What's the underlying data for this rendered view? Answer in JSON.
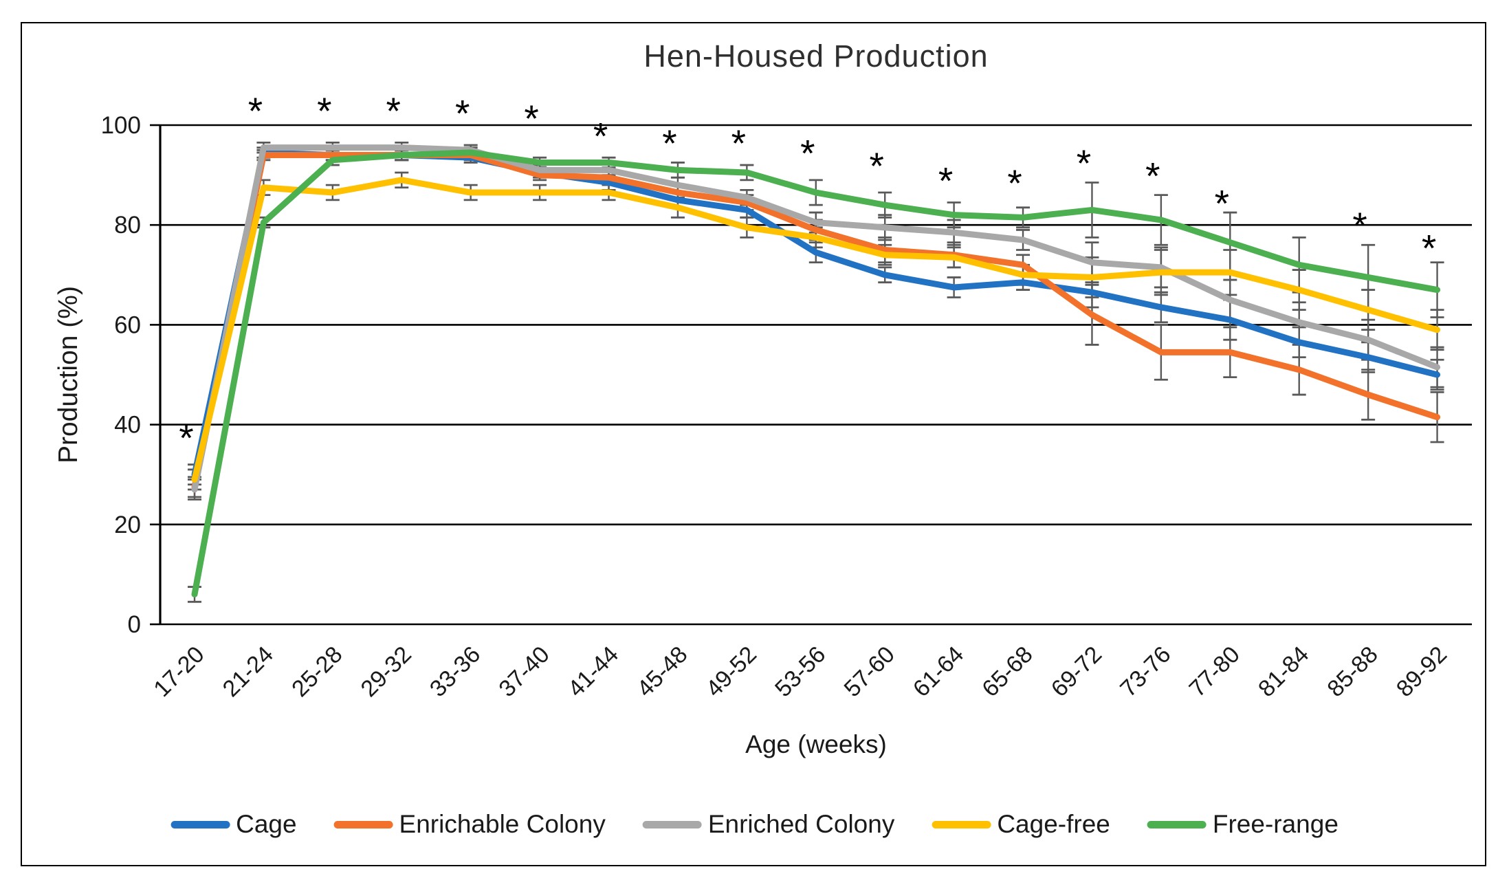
{
  "figure": {
    "title": "Hen-Housed Production",
    "x_axis_title": "Age (weeks)",
    "y_axis_title": "Production (%)"
  },
  "chart_data": {
    "type": "line",
    "title": "Hen-Housed Production",
    "xlabel": "Age (weeks)",
    "ylabel": "Production (%)",
    "ylim": [
      0,
      100
    ],
    "y_ticks": [
      0,
      20,
      40,
      60,
      80,
      100
    ],
    "grid": "horizontal-black",
    "legend_position": "bottom",
    "error_bar_color": "#595959",
    "axis_color": "#000000",
    "categories": [
      "17-20",
      "21-24",
      "25-28",
      "29-32",
      "33-36",
      "37-40",
      "41-44",
      "45-48",
      "49-52",
      "53-56",
      "57-60",
      "61-64",
      "65-68",
      "69-72",
      "73-76",
      "77-80",
      "81-84",
      "85-88",
      "89-92"
    ],
    "series": [
      {
        "name": "Cage",
        "color": "#2272C4",
        "values": [
          30,
          94.5,
          94,
          94,
          93.5,
          90.5,
          88.5,
          85,
          83,
          74.5,
          70,
          67.5,
          68.5,
          66.5,
          63.5,
          61,
          56.5,
          53.5,
          50
        ],
        "errors": [
          2,
          1,
          1,
          1,
          1,
          1,
          1.5,
          1.5,
          1.5,
          2,
          1.5,
          2,
          1.5,
          3,
          3,
          4,
          3,
          3,
          3
        ]
      },
      {
        "name": "Enrichable Colony",
        "color": "#F2712B",
        "values": [
          27.5,
          94,
          94,
          94,
          94,
          90,
          89.5,
          86.5,
          84.5,
          79,
          75,
          74,
          72,
          62,
          54.5,
          54.5,
          51,
          46,
          41.5
        ],
        "errors": [
          2,
          1,
          1,
          1,
          1,
          1,
          1.5,
          1.5,
          1.5,
          2,
          2.5,
          2.5,
          2,
          6,
          5.5,
          5,
          5,
          5,
          5
        ]
      },
      {
        "name": "Enriched Colony",
        "color": "#A8A8A8",
        "values": [
          27,
          95.5,
          95.5,
          95.5,
          95,
          91,
          91,
          88,
          85.5,
          80.5,
          79.5,
          78.5,
          77,
          72.5,
          71.5,
          65,
          60.5,
          57,
          51.5
        ],
        "errors": [
          2,
          1,
          1,
          1,
          1,
          1,
          1.5,
          1.5,
          1.5,
          2,
          2.5,
          2.5,
          2,
          4,
          4,
          4,
          4,
          4,
          4
        ]
      },
      {
        "name": "Cage-free",
        "color": "#FFC000",
        "values": [
          29,
          87.5,
          86.5,
          89,
          86.5,
          86.5,
          86.5,
          83.5,
          79.5,
          77.5,
          74,
          73.5,
          70,
          69.5,
          70.5,
          70.5,
          67,
          63,
          59
        ],
        "errors": [
          2,
          1.5,
          1.5,
          1.5,
          1.5,
          1.5,
          1.5,
          2,
          2,
          2,
          2,
          2,
          2,
          4,
          4.5,
          4.5,
          4,
          4,
          4
        ]
      },
      {
        "name": "Free-range",
        "color": "#4CAF50",
        "values": [
          6,
          80.5,
          93,
          94,
          94.5,
          92.5,
          92.5,
          91,
          90.5,
          86.5,
          84,
          82,
          81.5,
          83,
          81,
          76.5,
          72,
          69.5,
          67
        ],
        "errors": [
          1.5,
          1,
          1,
          1,
          1,
          1,
          1,
          1.5,
          1.5,
          2.5,
          2.5,
          2.5,
          2,
          5.5,
          5,
          6,
          5.5,
          6.5,
          5.5
        ]
      }
    ],
    "significance_asterisks": [
      {
        "category": "17-20",
        "y": 38.5
      },
      {
        "category": "21-24",
        "y": 104
      },
      {
        "category": "25-28",
        "y": 104
      },
      {
        "category": "29-32",
        "y": 104
      },
      {
        "category": "33-36",
        "y": 103.5
      },
      {
        "category": "37-40",
        "y": 102.5
      },
      {
        "category": "41-44",
        "y": 99
      },
      {
        "category": "45-48",
        "y": 97.5
      },
      {
        "category": "49-52",
        "y": 97.5
      },
      {
        "category": "53-56",
        "y": 95.5
      },
      {
        "category": "57-60",
        "y": 93
      },
      {
        "category": "61-64",
        "y": 90
      },
      {
        "category": "65-68",
        "y": 89.5
      },
      {
        "category": "69-72",
        "y": 93.5
      },
      {
        "category": "73-76",
        "y": 91
      },
      {
        "category": "77-80",
        "y": 85.5
      },
      {
        "category": "85-88",
        "y": 81
      },
      {
        "category": "89-92",
        "y": 76.5
      }
    ]
  }
}
